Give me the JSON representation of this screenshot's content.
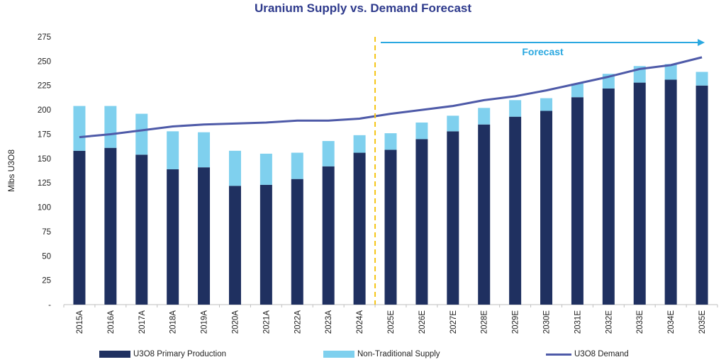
{
  "chart_data": {
    "type": "bar",
    "stacked": true,
    "title": "Uranium Supply vs. Demand Forecast",
    "ylabel": "Mlbs U3O8",
    "xlabel": "",
    "ylim": [
      0,
      275
    ],
    "yticks": [
      "-",
      "25",
      "50",
      "75",
      "100",
      "125",
      "150",
      "175",
      "200",
      "225",
      "250",
      "275"
    ],
    "grid": false,
    "legend_position": "bottom",
    "categories": [
      "2015A",
      "2016A",
      "2017A",
      "2018A",
      "2019A",
      "2020A",
      "2021A",
      "2022A",
      "2023A",
      "2024A",
      "2025E",
      "2026E",
      "2027E",
      "2028E",
      "2029E",
      "2030E",
      "2031E",
      "2032E",
      "2033E",
      "2034E",
      "2035E"
    ],
    "series": [
      {
        "name": "U3O8 Primary Production",
        "kind": "bar",
        "color": "#1f3060",
        "values": [
          158,
          161,
          154,
          139,
          141,
          122,
          123,
          129,
          142,
          156,
          159,
          170,
          178,
          185,
          193,
          199,
          213,
          222,
          228,
          231,
          225
        ]
      },
      {
        "name": "Non-Traditional Supply",
        "kind": "bar",
        "color": "#7fd0ee",
        "values": [
          46,
          43,
          42,
          39,
          36,
          36,
          32,
          27,
          26,
          18,
          17,
          17,
          16,
          17,
          17,
          13,
          14,
          15,
          17,
          16,
          14
        ]
      },
      {
        "name": "U3O8 Demand",
        "kind": "line",
        "color": "#4e5aa8",
        "values": [
          172,
          175,
          179,
          183,
          185,
          186,
          187,
          189,
          189,
          191,
          196,
          200,
          204,
          210,
          214,
          220,
          227,
          234,
          242,
          246,
          254
        ]
      }
    ],
    "annotations": [
      {
        "text": "Forecast",
        "color": "#2aa8e0",
        "from_category": "2025E",
        "to_category": "2035E"
      }
    ],
    "divider_after_category": "2024A",
    "divider_color": "#f5c518"
  }
}
